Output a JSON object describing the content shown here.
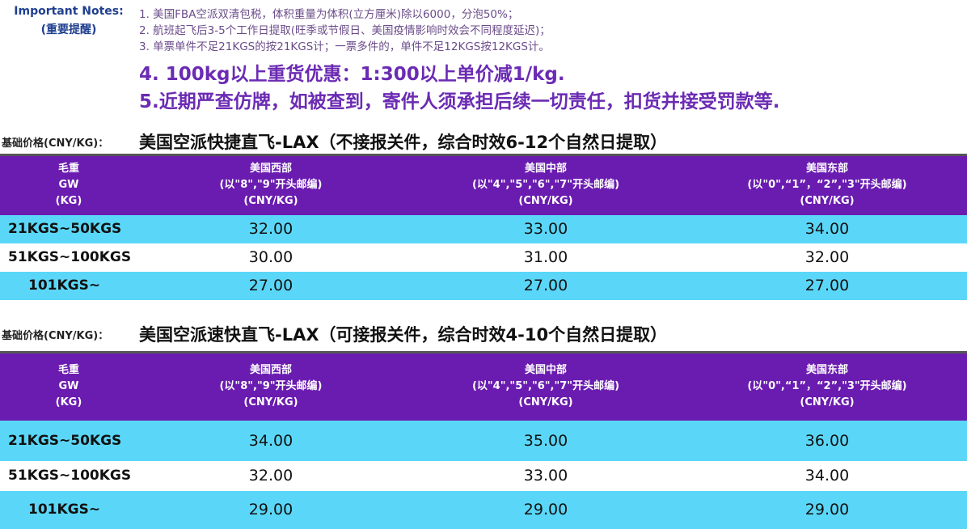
{
  "notes": {
    "label": "Important Notes:",
    "label_cn": "(重要提醒)",
    "lines": [
      "1. 美国FBA空派双清包税，体积重量为体积(立方厘米)除以6000，分泡50%；",
      "2. 航班起飞后3-5个工作日提取(旺季或节假日、美国疫情影响时效会不同程度延迟)；",
      "3. 单票单件不足21KGS的按21KGS计；一票多件的，单件不足12KGS按12KGS计。"
    ],
    "highlights": [
      "4. 100kg以上重货优惠：1:300以上单价减1/kg.",
      "5.近期严查仿牌，如被查到，寄件人须承担后续一切责任，扣货并接受罚款等."
    ]
  },
  "colors": {
    "header": "#6a1cb0",
    "row_highlight": "#5ad7f8",
    "highlight_text": "#6b2bb3"
  },
  "headers": {
    "weight": [
      "毛重",
      "GW",
      "(KG)"
    ],
    "west": [
      "美国西部",
      "(以\"8\",\"9\"开头邮编)",
      "(CNY/KG)"
    ],
    "central": [
      "美国中部",
      "(以\"4\",\"5\",\"6\",\"7\"开头邮编)",
      "(CNY/KG)"
    ],
    "east": [
      "美国东部",
      "(以\"0\",“1”，“2”,\"3\"开头邮编)",
      "(CNY/KG)"
    ]
  },
  "sections": [
    {
      "label": "基础价格(CNY/KG)：",
      "title": "美国空派快捷直飞-LAX（不接报关件，综合时效6-12个自然日提取）",
      "rows": [
        {
          "weight": "21KGS~50KGS",
          "west": "32.00",
          "central": "33.00",
          "east": "34.00"
        },
        {
          "weight": "51KGS~100KGS",
          "west": "30.00",
          "central": "31.00",
          "east": "32.00"
        },
        {
          "weight": "101KGS~",
          "west": "27.00",
          "central": "27.00",
          "east": "27.00"
        }
      ]
    },
    {
      "label": "基础价格(CNY/KG)：",
      "title": "美国空派速快直飞-LAX（可接报关件，综合时效4-10个自然日提取）",
      "rows": [
        {
          "weight": "21KGS~50KGS",
          "west": "34.00",
          "central": "35.00",
          "east": "36.00"
        },
        {
          "weight": "51KGS~100KGS",
          "west": "32.00",
          "central": "33.00",
          "east": "34.00"
        },
        {
          "weight": "101KGS~",
          "west": "29.00",
          "central": "29.00",
          "east": "29.00"
        }
      ]
    }
  ]
}
